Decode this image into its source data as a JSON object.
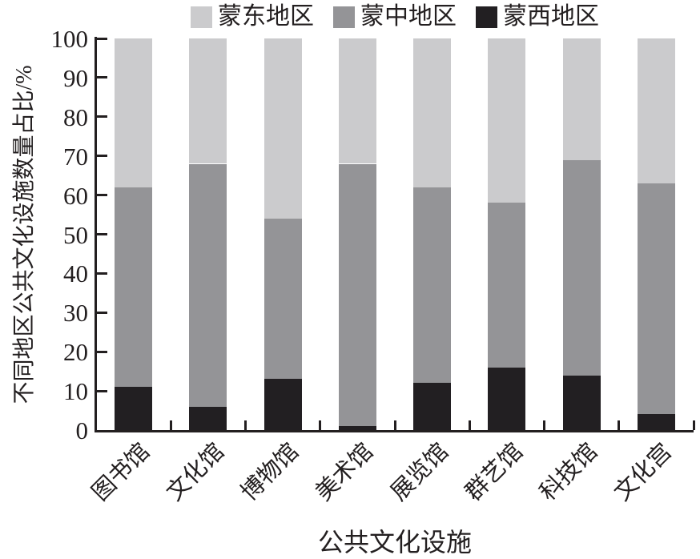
{
  "legend": {
    "items": [
      {
        "label": "蒙东地区",
        "series_key": "east"
      },
      {
        "label": "蒙中地区",
        "series_key": "mid"
      },
      {
        "label": "蒙西地区",
        "series_key": "west"
      }
    ]
  },
  "colors": {
    "east": "#cbcbcd",
    "mid": "#949497",
    "west": "#221f22",
    "axis": "#231f20"
  },
  "chart_data": {
    "type": "bar",
    "stacked": true,
    "title": "",
    "xlabel": "公共文化设施",
    "ylabel": "不同地区公共文化设施数量占比/%",
    "ylim": [
      0,
      100
    ],
    "yticks": [
      0,
      10,
      20,
      30,
      40,
      50,
      60,
      70,
      80,
      90,
      100
    ],
    "grid": false,
    "legend_position": "top",
    "categories": [
      "图书馆",
      "文化馆",
      "博物馆",
      "美术馆",
      "展览馆",
      "群艺馆",
      "科技馆",
      "文化宫"
    ],
    "series": [
      {
        "name": "蒙西地区",
        "key": "west",
        "color": "#221f22",
        "values": [
          11,
          6,
          13,
          1,
          12,
          16,
          14,
          4
        ]
      },
      {
        "name": "蒙中地区",
        "key": "mid",
        "color": "#949497",
        "values": [
          51,
          62,
          41,
          67,
          50,
          42,
          55,
          59
        ]
      },
      {
        "name": "蒙东地区",
        "key": "east",
        "color": "#cbcbcd",
        "values": [
          38,
          32,
          46,
          32,
          38,
          42,
          31,
          37
        ]
      }
    ]
  }
}
